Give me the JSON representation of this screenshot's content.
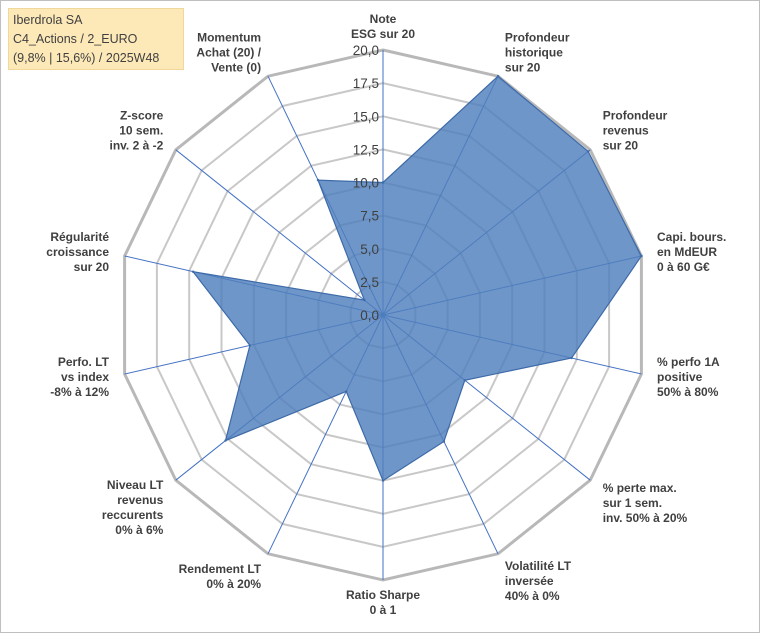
{
  "info": {
    "company": "Iberdrola SA",
    "portfolio": "C4_Actions / 2_EURO",
    "stats": "(9,8% | 15,6%) / 2025W48"
  },
  "colors": {
    "fill": "#4f7fbd",
    "stroke": "#3d6aa8",
    "grid": "#c8c8c8",
    "spoke": "#4472c4"
  },
  "chart_data": {
    "type": "radar",
    "title": "",
    "rmin": 0,
    "rmax": 20,
    "ticks": [
      0,
      2.5,
      5,
      7.5,
      10,
      12.5,
      15,
      17.5,
      20
    ],
    "tick_labels": [
      "0,0",
      "2,5",
      "5,0",
      "7,5",
      "10,0",
      "12,5",
      "15,0",
      "17,5",
      "20,0"
    ],
    "axes": [
      {
        "label": [
          "Note",
          "ESG sur 20"
        ],
        "value": 10
      },
      {
        "label": [
          "Profondeur",
          "historique",
          "sur 20"
        ],
        "value": 20
      },
      {
        "label": [
          "Profondeur",
          "revenus",
          "sur 20"
        ],
        "value": 19.8
      },
      {
        "label": [
          "Capi. bours.",
          "en MdEUR",
          "0 à 60 G€"
        ],
        "value": 20
      },
      {
        "label": [
          "% perfo 1A",
          "positive",
          "50% à 80%"
        ],
        "value": 14.6
      },
      {
        "label": [
          "% perte max.",
          "sur 1 sem.",
          "inv. 50% à 20%"
        ],
        "value": 7.9
      },
      {
        "label": [
          "Volatilité LT",
          "inversée",
          "40% à 0%"
        ],
        "value": 10.6
      },
      {
        "label": [
          "Ratio Sharpe",
          "0 à 1"
        ],
        "value": 12.5
      },
      {
        "label": [
          "Rendement LT",
          "0% à 20%"
        ],
        "value": 6.4
      },
      {
        "label": [
          "Niveau LT",
          "revenus",
          "reccurents",
          "0% à 6%"
        ],
        "value": 15.2
      },
      {
        "label": [
          "Perfo. LT",
          "vs index",
          "-8% à 12%"
        ],
        "value": 10.3
      },
      {
        "label": [
          "Régularité",
          "croissance",
          "sur 20"
        ],
        "value": 14.7
      },
      {
        "label": [
          "Z-score",
          "10 sem.",
          "inv. 2 à -2"
        ],
        "value": 1.8
      },
      {
        "label": [
          "Momentum",
          "Achat (20) /",
          "Vente (0)"
        ],
        "value": 11.3
      }
    ]
  }
}
